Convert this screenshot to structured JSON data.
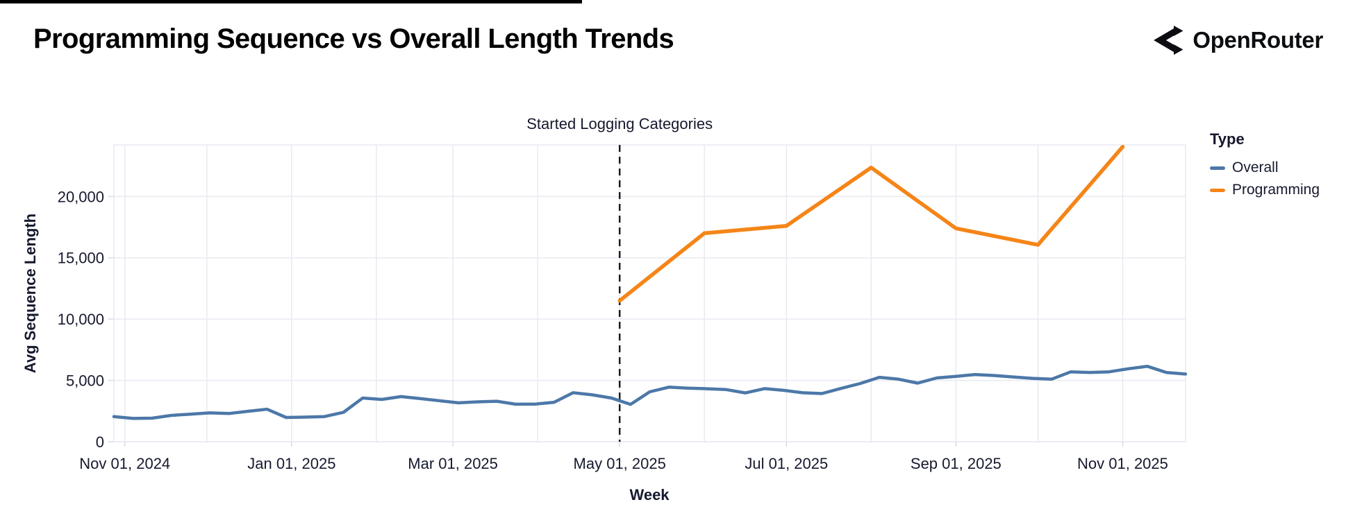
{
  "header": {
    "title": "Programming Sequence vs Overall Length Trends",
    "logo_text": "OpenRouter"
  },
  "annotation": {
    "text": "Started Logging Categories",
    "date": "2025-05-01"
  },
  "legend": {
    "title": "Type",
    "position": "right",
    "items": [
      {
        "label": "Overall",
        "color": "#4c78a8"
      },
      {
        "label": "Programming",
        "color": "#f58518"
      }
    ]
  },
  "axes": {
    "x": {
      "title": "Week",
      "ticks": [
        {
          "date": "2024-11-01",
          "label": "Nov 01, 2024"
        },
        {
          "date": "2025-01-01",
          "label": "Jan 01, 2025"
        },
        {
          "date": "2025-03-01",
          "label": "Mar 01, 2025"
        },
        {
          "date": "2025-05-01",
          "label": "May 01, 2025"
        },
        {
          "date": "2025-07-01",
          "label": "Jul 01, 2025"
        },
        {
          "date": "2025-09-01",
          "label": "Sep 01, 2025"
        },
        {
          "date": "2025-11-01",
          "label": "Nov 01, 2025"
        }
      ]
    },
    "y": {
      "title": "Avg Sequence Length",
      "ticks": [
        {
          "value": 0,
          "label": "0"
        },
        {
          "value": 5000,
          "label": "5,000"
        },
        {
          "value": 10000,
          "label": "10,000"
        },
        {
          "value": 15000,
          "label": "15,000"
        },
        {
          "value": 20000,
          "label": "20,000"
        }
      ]
    }
  },
  "chart_data": {
    "type": "line",
    "title": "Programming Sequence vs Overall Length Trends",
    "xlabel": "Week",
    "ylabel": "Avg Sequence Length",
    "x_domain": [
      "2024-10-28",
      "2025-11-24"
    ],
    "y_domain": [
      0,
      24200
    ],
    "grid": true,
    "gridline_color": "#e8eaf2",
    "tickmark_color": "#d8dbe5",
    "vline_color": "#181b27",
    "annotation_line": {
      "date": "2025-05-01",
      "label": "Started Logging Categories"
    },
    "series": [
      {
        "name": "Overall",
        "color": "#4c78a8",
        "stroke_width": 4.5,
        "points": [
          [
            "2024-10-28",
            2050
          ],
          [
            "2024-11-04",
            1900
          ],
          [
            "2024-11-11",
            1920
          ],
          [
            "2024-11-18",
            2150
          ],
          [
            "2024-11-25",
            2250
          ],
          [
            "2024-12-02",
            2350
          ],
          [
            "2024-12-09",
            2300
          ],
          [
            "2024-12-16",
            2480
          ],
          [
            "2024-12-23",
            2650
          ],
          [
            "2024-12-30",
            1980
          ],
          [
            "2025-01-06",
            2010
          ],
          [
            "2025-01-13",
            2050
          ],
          [
            "2025-01-20",
            2400
          ],
          [
            "2025-01-27",
            3560
          ],
          [
            "2025-02-03",
            3450
          ],
          [
            "2025-02-10",
            3680
          ],
          [
            "2025-02-17",
            3520
          ],
          [
            "2025-02-24",
            3350
          ],
          [
            "2025-03-03",
            3170
          ],
          [
            "2025-03-10",
            3250
          ],
          [
            "2025-03-17",
            3300
          ],
          [
            "2025-03-24",
            3060
          ],
          [
            "2025-03-31",
            3070
          ],
          [
            "2025-04-07",
            3220
          ],
          [
            "2025-04-14",
            4000
          ],
          [
            "2025-04-21",
            3820
          ],
          [
            "2025-04-28",
            3560
          ],
          [
            "2025-05-05",
            3050
          ],
          [
            "2025-05-12",
            4070
          ],
          [
            "2025-05-19",
            4450
          ],
          [
            "2025-05-26",
            4370
          ],
          [
            "2025-06-02",
            4320
          ],
          [
            "2025-06-09",
            4250
          ],
          [
            "2025-06-16",
            3980
          ],
          [
            "2025-06-23",
            4330
          ],
          [
            "2025-06-30",
            4190
          ],
          [
            "2025-07-07",
            3990
          ],
          [
            "2025-07-14",
            3930
          ],
          [
            "2025-07-21",
            4350
          ],
          [
            "2025-07-28",
            4750
          ],
          [
            "2025-08-04",
            5250
          ],
          [
            "2025-08-11",
            5100
          ],
          [
            "2025-08-18",
            4780
          ],
          [
            "2025-08-25",
            5200
          ],
          [
            "2025-09-01",
            5330
          ],
          [
            "2025-09-08",
            5480
          ],
          [
            "2025-09-15",
            5400
          ],
          [
            "2025-09-22",
            5280
          ],
          [
            "2025-09-29",
            5170
          ],
          [
            "2025-10-06",
            5100
          ],
          [
            "2025-10-13",
            5700
          ],
          [
            "2025-10-20",
            5650
          ],
          [
            "2025-10-27",
            5700
          ],
          [
            "2025-11-03",
            5950
          ],
          [
            "2025-11-10",
            6150
          ],
          [
            "2025-11-17",
            5650
          ],
          [
            "2025-11-24",
            5520
          ]
        ]
      },
      {
        "name": "Programming",
        "color": "#f58518",
        "stroke_width": 5.5,
        "points": [
          [
            "2025-05-01",
            11500
          ],
          [
            "2025-06-01",
            17000
          ],
          [
            "2025-07-01",
            17600
          ],
          [
            "2025-08-01",
            22350
          ],
          [
            "2025-09-01",
            17400
          ],
          [
            "2025-10-01",
            16050
          ],
          [
            "2025-11-01",
            24050
          ]
        ]
      }
    ]
  }
}
